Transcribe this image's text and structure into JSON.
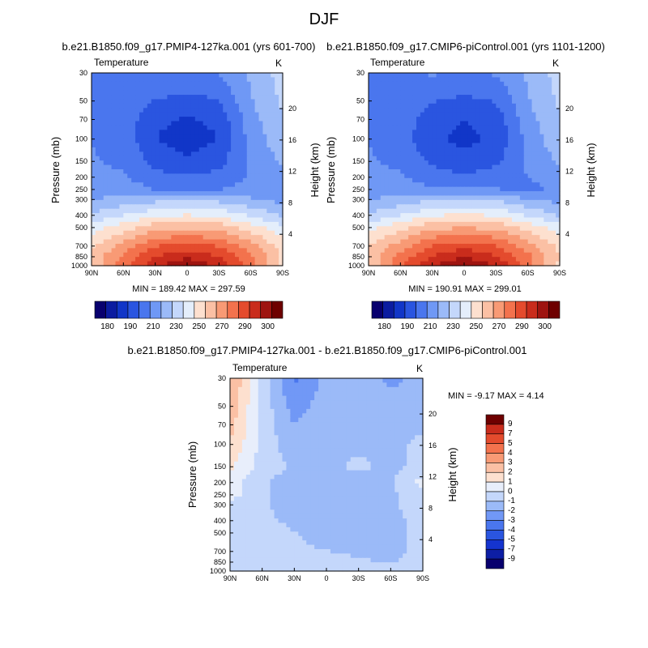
{
  "page": {
    "title": "DJF"
  },
  "colors": {
    "temp_palette": [
      "#08006e",
      "#0b1ca0",
      "#1136c8",
      "#2a55e0",
      "#4a76ee",
      "#6f98f5",
      "#9bbaf8",
      "#c4d7fb",
      "#e4eefb",
      "#fde0cf",
      "#fbc0a4",
      "#f89a75",
      "#f3724d",
      "#e44b2d",
      "#c92c1c",
      "#9e1410",
      "#6e0000"
    ],
    "diff_palette": [
      "#08006e",
      "#0d1ea5",
      "#1534cf",
      "#2a55e0",
      "#4a76ee",
      "#7198f6",
      "#9bbaf8",
      "#c4d7fb",
      "#e8eefb",
      "#fde0cf",
      "#fbc0a4",
      "#f89a75",
      "#f3724d",
      "#e44b2d",
      "#c92c1c",
      "#6e0000"
    ]
  },
  "panels": [
    {
      "id": "pmip4",
      "title": "b.e21.B1850.f09_g17.PMIP4-127ka.001 (yrs 601-700)",
      "variable": "Temperature",
      "units": "K",
      "stats": "MIN = 189.42   MAX = 297.59",
      "ylabel": "Pressure (mb)",
      "ylabel_right": "Height (km)"
    },
    {
      "id": "piControl",
      "title": "b.e21.B1850.f09_g17.CMIP6-piControl.001 (yrs 1101-1200)",
      "variable": "Temperature",
      "units": "K",
      "stats": "MIN = 190.91   MAX = 299.01",
      "ylabel": "Pressure (mb)",
      "ylabel_right": "Height (km)"
    },
    {
      "id": "diff",
      "title": "b.e21.B1850.f09_g17.PMIP4-127ka.001 - b.e21.B1850.f09_g17.CMIP6-piControl.001",
      "variable": "Temperature",
      "units": "K",
      "stats": "MIN =  -9.17   MAX =   4.14",
      "ylabel": "Pressure (mb)",
      "ylabel_right": "Height (km)"
    }
  ],
  "axes": {
    "x_ticks": [
      "90N",
      "60N",
      "30N",
      "0",
      "30S",
      "60S",
      "90S"
    ],
    "x_values": [
      90,
      60,
      30,
      0,
      -30,
      -60,
      -90
    ],
    "p_ticks": [
      "30",
      "50",
      "70",
      "100",
      "150",
      "200",
      "250",
      "300",
      "400",
      "500",
      "700",
      "850",
      "1000"
    ],
    "p_values": [
      30,
      50,
      70,
      100,
      150,
      200,
      250,
      300,
      400,
      500,
      700,
      850,
      1000
    ],
    "h_ticks": [
      "20",
      "16",
      "12",
      "8",
      "4"
    ],
    "h_values": [
      20,
      16,
      12,
      8,
      4
    ],
    "y_scale": "log-pressure"
  },
  "colorbar_temp": {
    "labels": [
      "180",
      "190",
      "210",
      "230",
      "250",
      "270",
      "290",
      "300"
    ],
    "levels": [
      180,
      185,
      190,
      200,
      210,
      220,
      230,
      240,
      250,
      260,
      270,
      280,
      290,
      295,
      300
    ]
  },
  "colorbar_diff": {
    "labels": [
      "9",
      "7",
      "5",
      "4",
      "3",
      "2",
      "1",
      "0",
      "-1",
      "-2",
      "-3",
      "-4",
      "-5",
      "-7",
      "-9"
    ],
    "levels": [
      9,
      7,
      5,
      4,
      3,
      2,
      1,
      0,
      -1,
      -2,
      -3,
      -4,
      -5,
      -7,
      -9
    ]
  },
  "chart_data": [
    {
      "type": "heatmap",
      "title": "b.e21.B1850.f09_g17.PMIP4-127ka.001 (yrs 601-700)",
      "xlabel": "",
      "ylabel": "Pressure (mb)",
      "x": [
        90,
        60,
        30,
        0,
        -30,
        -60,
        -90
      ],
      "y": [
        30,
        50,
        70,
        100,
        150,
        200,
        250,
        300,
        400,
        500,
        700,
        850,
        1000
      ],
      "z": [
        [
          205,
          212,
          214,
          212,
          214,
          222,
          232
        ],
        [
          210,
          212,
          205,
          203,
          205,
          220,
          230
        ],
        [
          212,
          210,
          200,
          197,
          200,
          218,
          228
        ],
        [
          213,
          210,
          198,
          193,
          198,
          216,
          226
        ],
        [
          214,
          212,
          203,
          200,
          203,
          215,
          222
        ],
        [
          214,
          214,
          208,
          206,
          208,
          214,
          218
        ],
        [
          216,
          218,
          213,
          213,
          213,
          216,
          217
        ],
        [
          220,
          224,
          226,
          226,
          226,
          222,
          218
        ],
        [
          230,
          236,
          242,
          244,
          242,
          235,
          228
        ],
        [
          240,
          248,
          256,
          258,
          256,
          248,
          238
        ],
        [
          250,
          262,
          274,
          278,
          274,
          262,
          248
        ],
        [
          254,
          268,
          282,
          288,
          282,
          268,
          250
        ],
        [
          250,
          272,
          288,
          296,
          288,
          270,
          248
        ]
      ],
      "zmin": 189.42,
      "zmax": 297.59
    },
    {
      "type": "heatmap",
      "title": "b.e21.B1850.f09_g17.CMIP6-piControl.001 (yrs 1101-1200)",
      "xlabel": "",
      "ylabel": "Pressure (mb)",
      "x": [
        90,
        60,
        30,
        0,
        -30,
        -60,
        -90
      ],
      "y": [
        30,
        50,
        70,
        100,
        150,
        200,
        250,
        300,
        400,
        500,
        700,
        850,
        1000
      ],
      "z": [
        [
          205,
          212,
          214,
          212,
          214,
          222,
          232
        ],
        [
          210,
          212,
          206,
          204,
          206,
          220,
          230
        ],
        [
          212,
          210,
          201,
          198,
          201,
          218,
          228
        ],
        [
          213,
          210,
          199,
          196,
          199,
          216,
          226
        ],
        [
          214,
          212,
          204,
          201,
          204,
          215,
          222
        ],
        [
          214,
          214,
          209,
          207,
          209,
          213,
          218
        ],
        [
          216,
          218,
          214,
          214,
          214,
          210,
          217
        ],
        [
          220,
          224,
          227,
          227,
          227,
          222,
          218
        ],
        [
          230,
          236,
          243,
          245,
          243,
          235,
          228
        ],
        [
          241,
          249,
          257,
          259,
          257,
          249,
          239
        ],
        [
          251,
          263,
          275,
          279,
          275,
          263,
          249
        ],
        [
          255,
          269,
          283,
          289,
          283,
          269,
          251
        ],
        [
          251,
          273,
          289,
          297,
          289,
          271,
          249
        ]
      ],
      "zmin": 190.91,
      "zmax": 299.01
    },
    {
      "type": "heatmap",
      "title": "b.e21.B1850.f09_g17.PMIP4-127ka.001 - b.e21.B1850.f09_g17.CMIP6-piControl.001",
      "xlabel": "",
      "ylabel": "Pressure (mb)",
      "x": [
        90,
        60,
        30,
        0,
        -30,
        -60,
        -90
      ],
      "y": [
        30,
        50,
        70,
        100,
        150,
        200,
        250,
        300,
        400,
        500,
        700,
        850,
        1000
      ],
      "z": [
        [
          4,
          -0.5,
          -4,
          -2,
          -1.5,
          -3,
          -2
        ],
        [
          3.5,
          -0.5,
          -3,
          -2,
          -1.5,
          -1.5,
          -1.5
        ],
        [
          3,
          -0.5,
          -2.5,
          -1.5,
          -1.5,
          -1.5,
          -1.5
        ],
        [
          2.5,
          -0.5,
          -2,
          -1.5,
          -1.5,
          -1.5,
          -1
        ],
        [
          1.5,
          -0.5,
          -1.5,
          -1.5,
          -1,
          -1.5,
          -1
        ],
        [
          0.5,
          -1,
          -2,
          -2.2,
          -2.2,
          -1.5,
          0.5
        ],
        [
          0.5,
          -1,
          -2,
          -2.2,
          -2.2,
          -1.5,
          -0.5
        ],
        [
          -0.5,
          -1,
          -2,
          -2.2,
          -2.2,
          -1.5,
          -0.5
        ],
        [
          -0.5,
          -1,
          -1.5,
          -2,
          -2,
          -1.5,
          -1
        ],
        [
          -0.5,
          -0.8,
          -1.2,
          -1.5,
          -1.5,
          -1.5,
          -1
        ],
        [
          -0.5,
          -0.8,
          -1.2,
          -1.2,
          -1.5,
          -1.5,
          -1
        ],
        [
          -0.5,
          -0.5,
          -1,
          -1,
          -1,
          -1.5,
          -0.5
        ],
        [
          -0.5,
          -0.5,
          -0.5,
          -0.5,
          -0.5,
          -0.5,
          -0.5
        ]
      ],
      "zmin": -9.17,
      "zmax": 4.14
    }
  ]
}
